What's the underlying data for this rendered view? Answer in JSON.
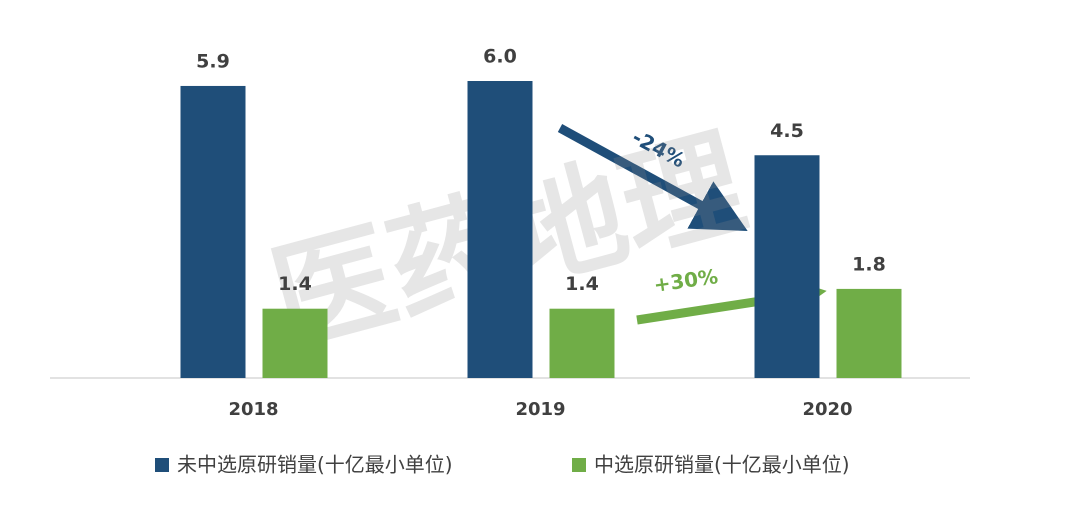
{
  "chart_data": {
    "type": "bar",
    "categories": [
      "2018",
      "2019",
      "2020"
    ],
    "series": [
      {
        "name": "未中选原研销量(十亿最小单位)",
        "color": "#1f4e79",
        "values": [
          5.9,
          6.0,
          4.5
        ],
        "value_labels": [
          "5.9",
          "6.0",
          "4.5"
        ]
      },
      {
        "name": "中选原研销量(十亿最小单位)",
        "color": "#70ad47",
        "values": [
          1.4,
          1.4,
          1.8
        ],
        "value_labels": [
          "1.4",
          "1.4",
          "1.8"
        ]
      }
    ],
    "ylim": [
      0,
      6
    ],
    "annotations": [
      "-24%",
      "+30%"
    ],
    "watermark": "医药地理",
    "legend": "bottom"
  }
}
